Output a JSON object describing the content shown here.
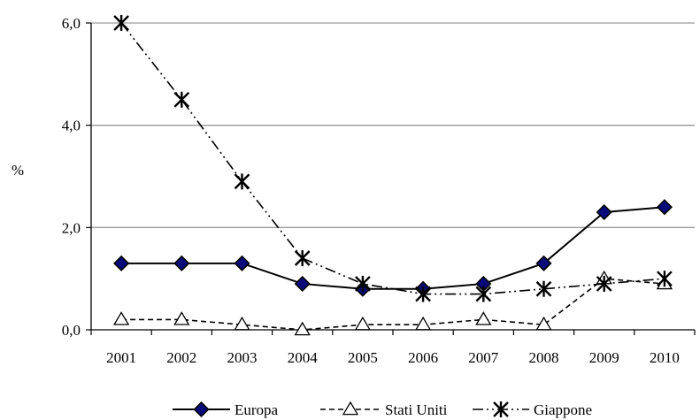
{
  "chart_data": {
    "type": "line",
    "ylabel": "%",
    "ylim": [
      0,
      6
    ],
    "y_ticks": [
      "0,0",
      "2,0",
      "4,0",
      "6,0"
    ],
    "y_tick_values": [
      0,
      2,
      4,
      6
    ],
    "categories": [
      "2001",
      "2002",
      "2003",
      "2004",
      "2005",
      "2006",
      "2007",
      "2008",
      "2009",
      "2010"
    ],
    "grid": "horizontal",
    "legend_position": "bottom",
    "series": [
      {
        "name": "Europa",
        "values": [
          1.3,
          1.3,
          1.3,
          0.9,
          0.8,
          0.8,
          0.9,
          1.3,
          2.3,
          2.4
        ],
        "line_style": "solid",
        "marker": "diamond",
        "marker_color": "#0a0a7a"
      },
      {
        "name": "Stati Uniti",
        "values": [
          0.2,
          0.2,
          0.1,
          0.0,
          0.1,
          0.1,
          0.2,
          0.1,
          1.0,
          0.9
        ],
        "line_style": "dashed",
        "marker": "triangle",
        "marker_color": "#ffffff"
      },
      {
        "name": "Giappone",
        "values": [
          6.0,
          4.5,
          2.9,
          1.4,
          0.9,
          0.7,
          0.7,
          0.8,
          0.9,
          1.0
        ],
        "line_style": "dash-dot-dot",
        "marker": "asterisk",
        "marker_color": "#000000"
      }
    ]
  }
}
